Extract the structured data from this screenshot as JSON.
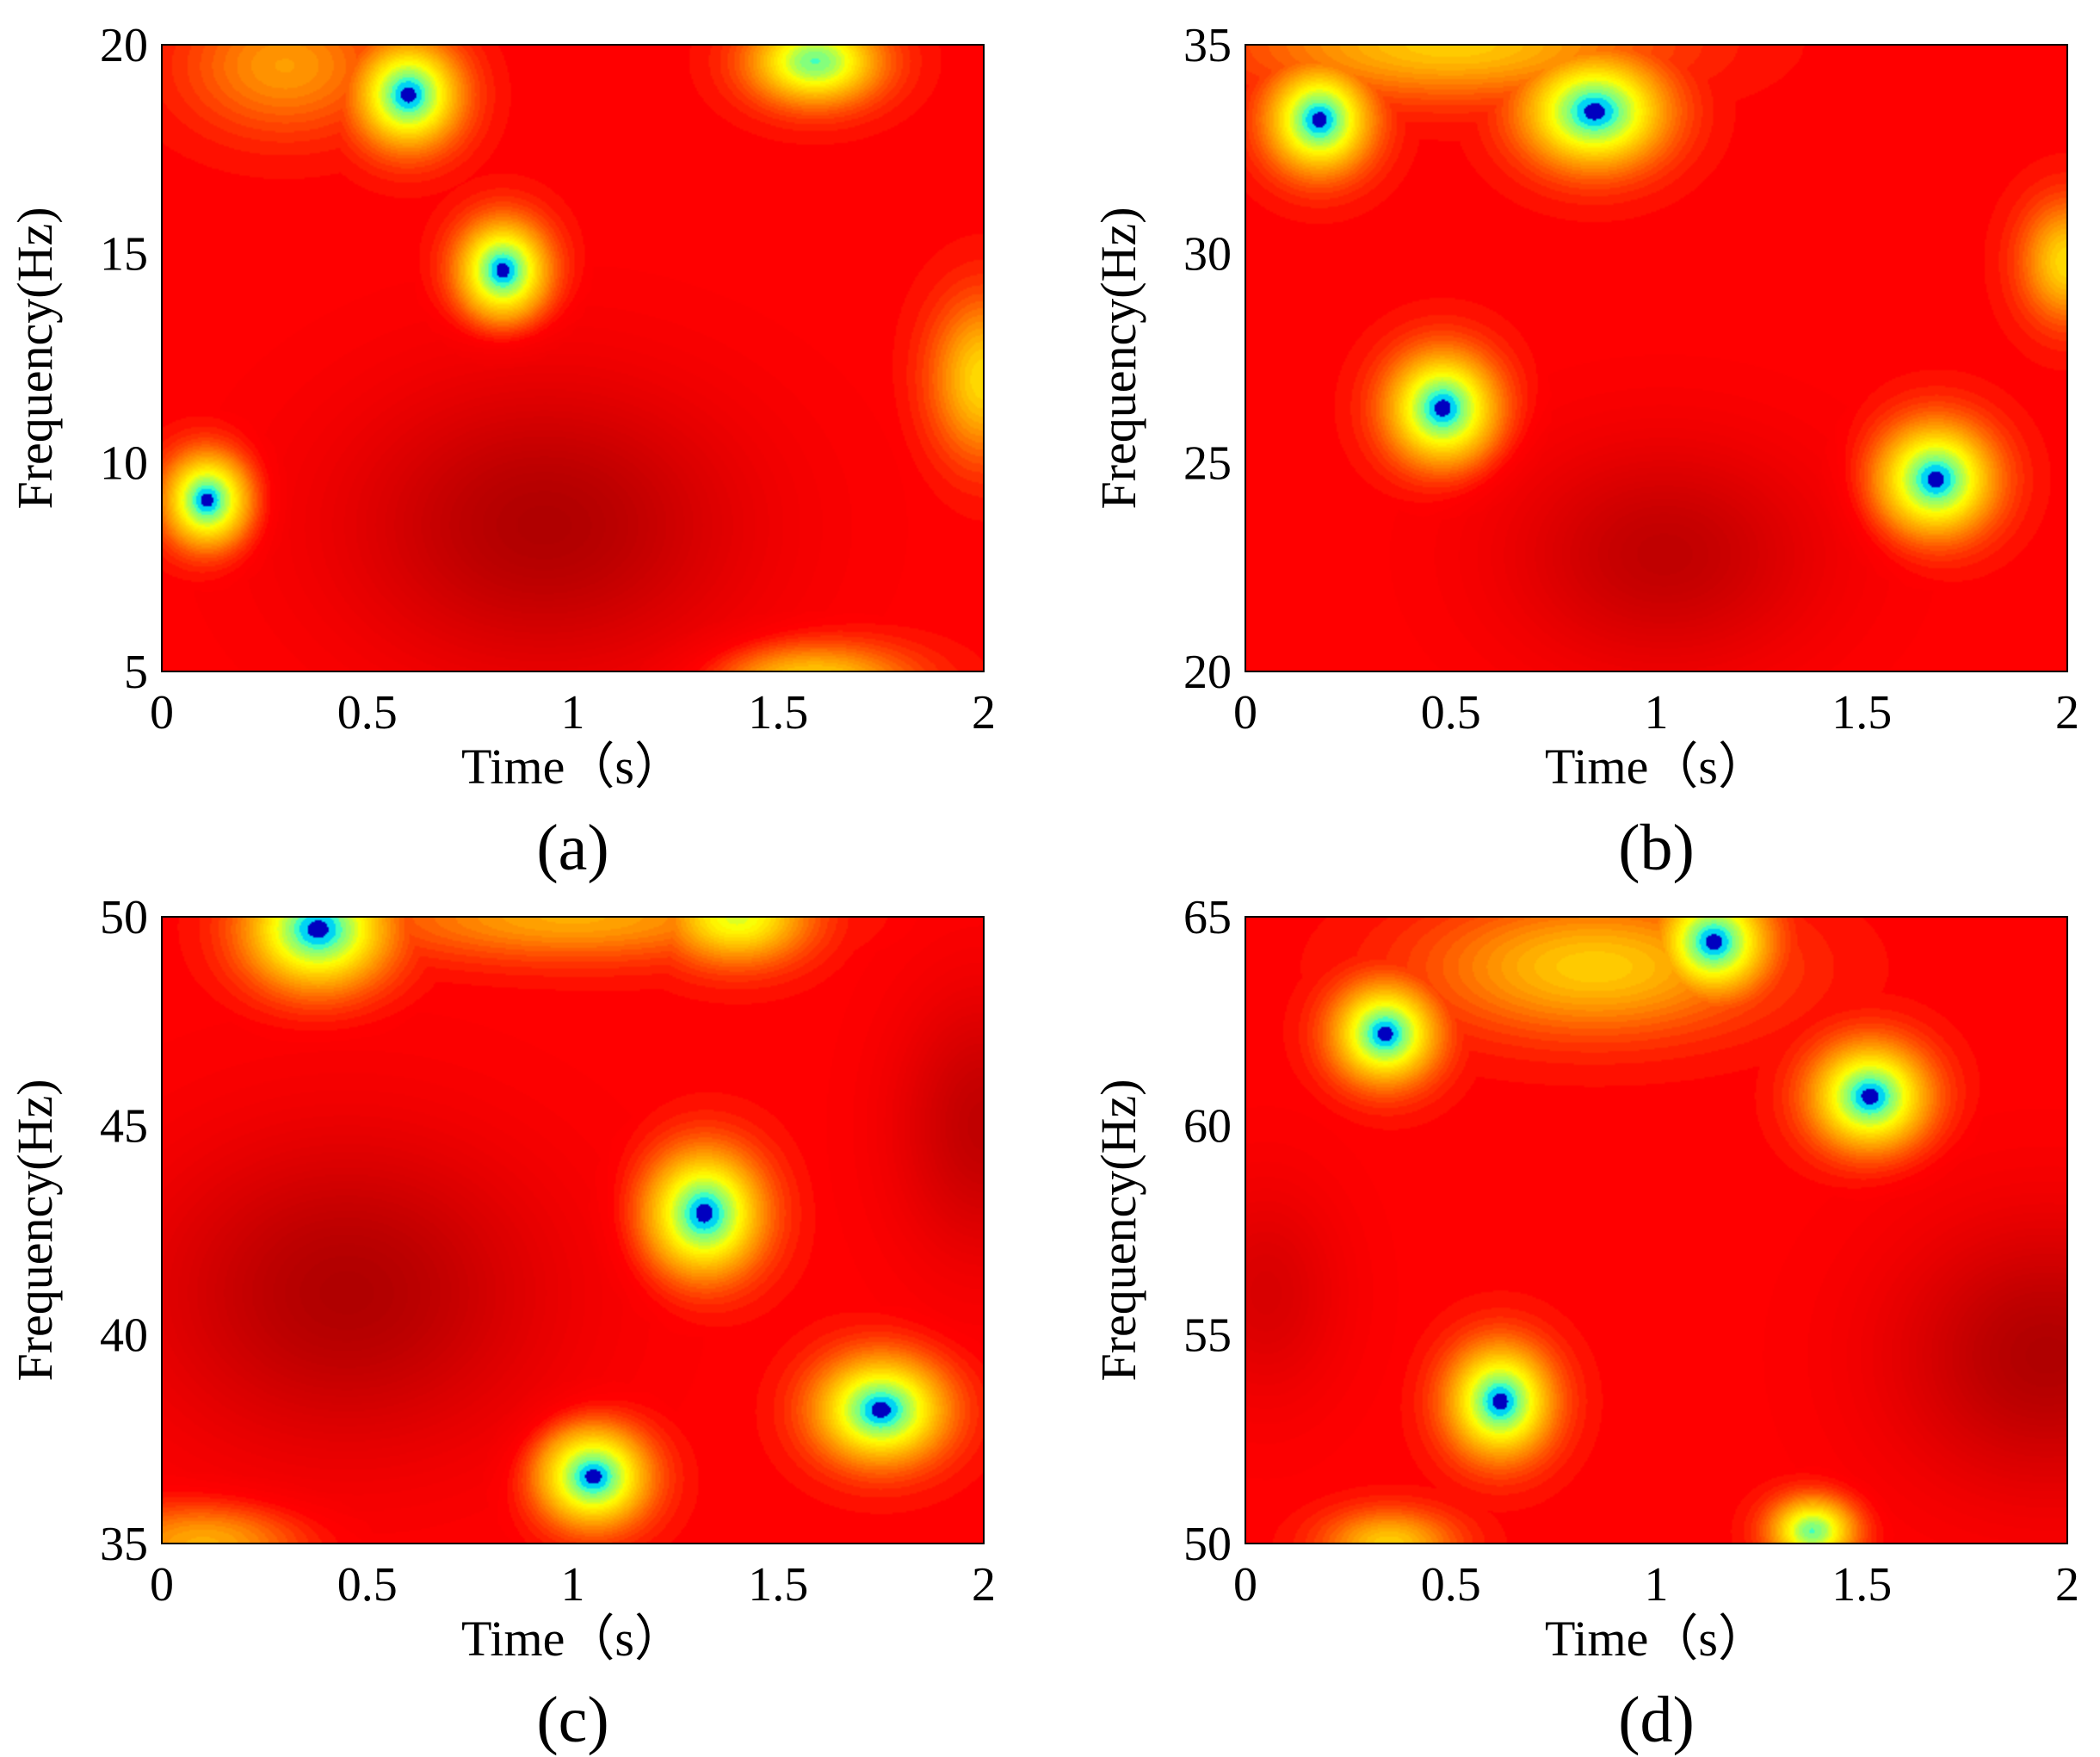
{
  "figure": {
    "colors": {
      "background_low": "#b00000",
      "background": "#ff0000",
      "orange": "#ff8a00",
      "yellow": "#ffff00",
      "cyan": "#00ffff",
      "blue": "#0000c0"
    }
  },
  "chart_data": [
    {
      "type": "heatmap",
      "panel_label": "(a)",
      "xlabel": "Time（s）",
      "ylabel": "Frequency(Hz)",
      "xlim": [
        0,
        2
      ],
      "ylim": [
        5,
        20
      ],
      "xticks": [
        0,
        0.5,
        1,
        1.5,
        2
      ],
      "xtick_labels": [
        "0",
        "0.5",
        "1",
        "1.5",
        "2"
      ],
      "yticks": [
        5,
        10,
        15,
        20
      ],
      "ytick_labels": [
        "5",
        "10",
        "15",
        "20"
      ],
      "peaks": [
        {
          "t": 0.11,
          "f": 9.1,
          "strength": 1.0,
          "width_t": 0.13,
          "width_f": 1.4
        },
        {
          "t": 0.6,
          "f": 18.8,
          "strength": 1.0,
          "width_t": 0.16,
          "width_f": 1.6
        },
        {
          "t": 0.83,
          "f": 14.6,
          "strength": 1.0,
          "width_t": 0.14,
          "width_f": 1.5
        },
        {
          "t": 1.59,
          "f": 19.6,
          "strength": 0.9,
          "width_t": 0.2,
          "width_f": 1.3
        },
        {
          "t": 1.59,
          "f": 4.7,
          "strength": 0.6,
          "width_t": 0.3,
          "width_f": 1.2
        },
        {
          "t": 2.0,
          "f": 12.0,
          "strength": 0.6,
          "width_t": 0.16,
          "width_f": 2.4
        },
        {
          "t": 0.3,
          "f": 19.5,
          "strength": 0.4,
          "width_t": 0.3,
          "width_f": 2.0
        }
      ],
      "troughs": [
        {
          "t": 0.93,
          "f": 8.5,
          "depth": 1.0,
          "width_t": 0.45,
          "width_f": 3.2
        }
      ]
    },
    {
      "type": "heatmap",
      "panel_label": "(b)",
      "xlabel": "Time（s）",
      "ylabel": "Frequency(Hz)",
      "xlim": [
        0,
        2
      ],
      "ylim": [
        20,
        35
      ],
      "xticks": [
        0,
        0.5,
        1,
        1.5,
        2
      ],
      "xtick_labels": [
        "0",
        "0.5",
        "1",
        "1.5",
        "2"
      ],
      "yticks": [
        20,
        25,
        30,
        35
      ],
      "ytick_labels": [
        "20",
        "25",
        "30",
        "35"
      ],
      "peaks": [
        {
          "t": 0.18,
          "f": 33.2,
          "strength": 1.0,
          "width_t": 0.16,
          "width_f": 1.6
        },
        {
          "t": 0.85,
          "f": 33.4,
          "strength": 1.0,
          "width_t": 0.22,
          "width_f": 1.7
        },
        {
          "t": 0.48,
          "f": 26.3,
          "strength": 1.0,
          "width_t": 0.17,
          "width_f": 1.7
        },
        {
          "t": 1.68,
          "f": 24.6,
          "strength": 1.0,
          "width_t": 0.18,
          "width_f": 1.7
        },
        {
          "t": 2.0,
          "f": 29.8,
          "strength": 0.6,
          "width_t": 0.14,
          "width_f": 1.8
        },
        {
          "t": 0.5,
          "f": 35.0,
          "strength": 0.55,
          "width_t": 0.6,
          "width_f": 1.6
        }
      ],
      "troughs": [
        {
          "t": 1.02,
          "f": 22.8,
          "depth": 0.8,
          "width_t": 0.35,
          "width_f": 2.5
        }
      ]
    },
    {
      "type": "heatmap",
      "panel_label": "(c)",
      "xlabel": "Time（s）",
      "ylabel": "Frequency(Hz)",
      "xlim": [
        0,
        2
      ],
      "ylim": [
        35,
        50
      ],
      "xticks": [
        0,
        0.5,
        1,
        1.5,
        2
      ],
      "xtick_labels": [
        "0",
        "0.5",
        "1",
        "1.5",
        "2"
      ],
      "yticks": [
        35,
        40,
        45,
        50
      ],
      "ytick_labels": [
        "35",
        "40",
        "45",
        "50"
      ],
      "peaks": [
        {
          "t": 0.38,
          "f": 49.7,
          "strength": 1.0,
          "width_t": 0.22,
          "width_f": 1.8
        },
        {
          "t": 1.4,
          "f": 50.0,
          "strength": 0.75,
          "width_t": 0.22,
          "width_f": 1.4
        },
        {
          "t": 1.32,
          "f": 42.9,
          "strength": 1.0,
          "width_t": 0.18,
          "width_f": 1.9
        },
        {
          "t": 1.05,
          "f": 36.6,
          "strength": 1.0,
          "width_t": 0.17,
          "width_f": 1.5
        },
        {
          "t": 1.75,
          "f": 38.2,
          "strength": 1.0,
          "width_t": 0.2,
          "width_f": 1.6
        },
        {
          "t": 0.1,
          "f": 35.0,
          "strength": 0.45,
          "width_t": 0.3,
          "width_f": 1.2
        },
        {
          "t": 1.0,
          "f": 50.0,
          "strength": 0.45,
          "width_t": 0.6,
          "width_f": 1.3
        }
      ],
      "troughs": [
        {
          "t": 0.45,
          "f": 41.0,
          "depth": 1.0,
          "width_t": 0.45,
          "width_f": 3.5
        },
        {
          "t": 2.0,
          "f": 45.0,
          "depth": 0.8,
          "width_t": 0.2,
          "width_f": 3.0
        }
      ]
    },
    {
      "type": "heatmap",
      "panel_label": "(d)",
      "xlabel": "Time（s）",
      "ylabel": "Frequency(Hz)",
      "xlim": [
        0,
        2
      ],
      "ylim": [
        50,
        65
      ],
      "xticks": [
        0,
        0.5,
        1,
        1.5,
        2
      ],
      "xtick_labels": [
        "0",
        "0.5",
        "1",
        "1.5",
        "2"
      ],
      "yticks": [
        50,
        55,
        60,
        65
      ],
      "ytick_labels": [
        "50",
        "55",
        "60",
        "65"
      ],
      "peaks": [
        {
          "t": 0.34,
          "f": 62.2,
          "strength": 1.0,
          "width_t": 0.16,
          "width_f": 1.5
        },
        {
          "t": 1.14,
          "f": 64.4,
          "strength": 1.0,
          "width_t": 0.17,
          "width_f": 1.6
        },
        {
          "t": 1.52,
          "f": 60.7,
          "strength": 1.0,
          "width_t": 0.18,
          "width_f": 1.6
        },
        {
          "t": 0.62,
          "f": 53.4,
          "strength": 1.0,
          "width_t": 0.16,
          "width_f": 1.7
        },
        {
          "t": 1.38,
          "f": 50.3,
          "strength": 0.9,
          "width_t": 0.13,
          "width_f": 1.0
        },
        {
          "t": 0.35,
          "f": 50.0,
          "strength": 0.55,
          "width_t": 0.2,
          "width_f": 1.0
        },
        {
          "t": 0.85,
          "f": 63.8,
          "strength": 0.55,
          "width_t": 0.5,
          "width_f": 2.0
        }
      ],
      "troughs": [
        {
          "t": 1.95,
          "f": 54.5,
          "depth": 1.0,
          "width_t": 0.35,
          "width_f": 3.0
        },
        {
          "t": 0.05,
          "f": 56.0,
          "depth": 0.5,
          "width_t": 0.18,
          "width_f": 2.5
        }
      ]
    }
  ]
}
